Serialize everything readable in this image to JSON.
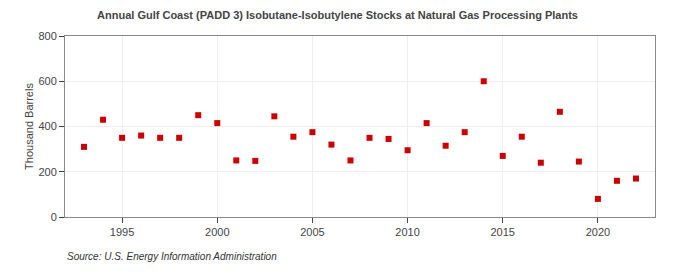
{
  "chart_data": {
    "type": "scatter",
    "title": "Annual Gulf Coast (PADD 3) Isobutane-Isobutylene Stocks at Natural Gas Processing Plants",
    "ylabel": "Thousand Barrels",
    "source": "Source: U.S. Energy Information Administration",
    "x": [
      1993,
      1994,
      1995,
      1996,
      1997,
      1998,
      1999,
      2000,
      2001,
      2002,
      2003,
      2004,
      2005,
      2006,
      2007,
      2008,
      2009,
      2010,
      2011,
      2012,
      2013,
      2014,
      2015,
      2016,
      2017,
      2018,
      2019,
      2020,
      2021,
      2022
    ],
    "values": [
      310,
      430,
      350,
      360,
      350,
      350,
      450,
      415,
      250,
      248,
      445,
      355,
      375,
      320,
      250,
      350,
      345,
      295,
      415,
      315,
      375,
      600,
      270,
      355,
      240,
      465,
      245,
      80,
      160,
      170
    ],
    "color": "#cc0000",
    "marker": "square",
    "xlim": [
      1992,
      2023
    ],
    "xticks": [
      1995,
      2000,
      2005,
      2010,
      2015,
      2020
    ],
    "ylim": [
      0,
      800
    ],
    "yticks": [
      0,
      200,
      400,
      600,
      800
    ],
    "grid": true
  }
}
